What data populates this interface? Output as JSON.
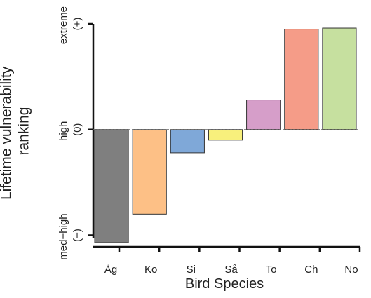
{
  "chart_data": {
    "type": "bar",
    "categories": [
      "Åg",
      "Ko",
      "Si",
      "Så",
      "To",
      "Ch",
      "No"
    ],
    "values": [
      -1.07,
      -0.8,
      -0.22,
      -0.1,
      0.28,
      0.95,
      0.96
    ],
    "colors": [
      "#7f7f7f",
      "#fdc086",
      "#7fa8d8",
      "#f8f07c",
      "#d69ec9",
      "#f59c88",
      "#c6e09f"
    ],
    "xlabel": "Bird Species",
    "ylabel": "Lifetime vulnerability ranking",
    "ylim": [
      -1.03,
      1
    ],
    "yticks": [
      {
        "value": -1,
        "label": "med−high (−)"
      },
      {
        "value": 0,
        "label": "high (0)"
      },
      {
        "value": 1,
        "label": "extreme (+)"
      }
    ],
    "zero_line": true
  }
}
